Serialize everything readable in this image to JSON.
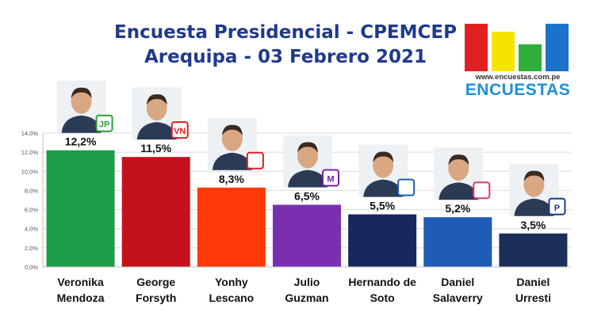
{
  "title": {
    "line1": "Encuesta Presidencial - CPEMCEP",
    "line2": "Arequipa - 03 Febrero 2021"
  },
  "logo": {
    "url": "www.encuestas.com.pe",
    "brand": "ENCUESTAS",
    "bar_colors": [
      "#e02020",
      "#f5e400",
      "#2fae3a",
      "#1a73c8"
    ]
  },
  "chart_data": {
    "type": "bar",
    "categories": [
      "Veronika Mendoza",
      "George Forsyth",
      "Yonhy Lescano",
      "Julio Guzman",
      "Hernando de Soto",
      "Daniel Salaverry",
      "Daniel Urresti"
    ],
    "category_lines": [
      [
        "Veronika",
        "Mendoza"
      ],
      [
        "George",
        "Forsyth"
      ],
      [
        "Yonhy",
        "Lescano"
      ],
      [
        "Julio",
        "Guzman"
      ],
      [
        "Hernando de",
        "Soto"
      ],
      [
        "Daniel",
        "Salaverry"
      ],
      [
        "Daniel",
        "Urresti"
      ]
    ],
    "values": [
      12.2,
      11.5,
      8.3,
      6.5,
      5.5,
      5.2,
      3.5
    ],
    "data_labels": [
      "12,2%",
      "11,5%",
      "8,3%",
      "6,5%",
      "5,5%",
      "5,2%",
      "3,5%"
    ],
    "colors": [
      "#1e9e4a",
      "#c4121b",
      "#ff3a0a",
      "#7a2fb0",
      "#17285c",
      "#1f5cb8",
      "#1b2f58"
    ],
    "party_badges": [
      {
        "text": "JP",
        "color": "#2a9d3a"
      },
      {
        "text": "VN",
        "color": "#d9201f"
      },
      {
        "text": "",
        "color": "#d9201f"
      },
      {
        "text": "M",
        "color": "#7a1fa2"
      },
      {
        "text": "",
        "color": "#1d5fb3"
      },
      {
        "text": "",
        "color": "#e03a6a"
      },
      {
        "text": "P",
        "color": "#1d3a8a"
      }
    ],
    "y_ticks": [
      "0,0%",
      "2,0%",
      "4,0%",
      "6,0%",
      "8,0%",
      "10,0%",
      "12,0%",
      "14,0%"
    ],
    "ylim": [
      0,
      14
    ],
    "grid": true
  }
}
